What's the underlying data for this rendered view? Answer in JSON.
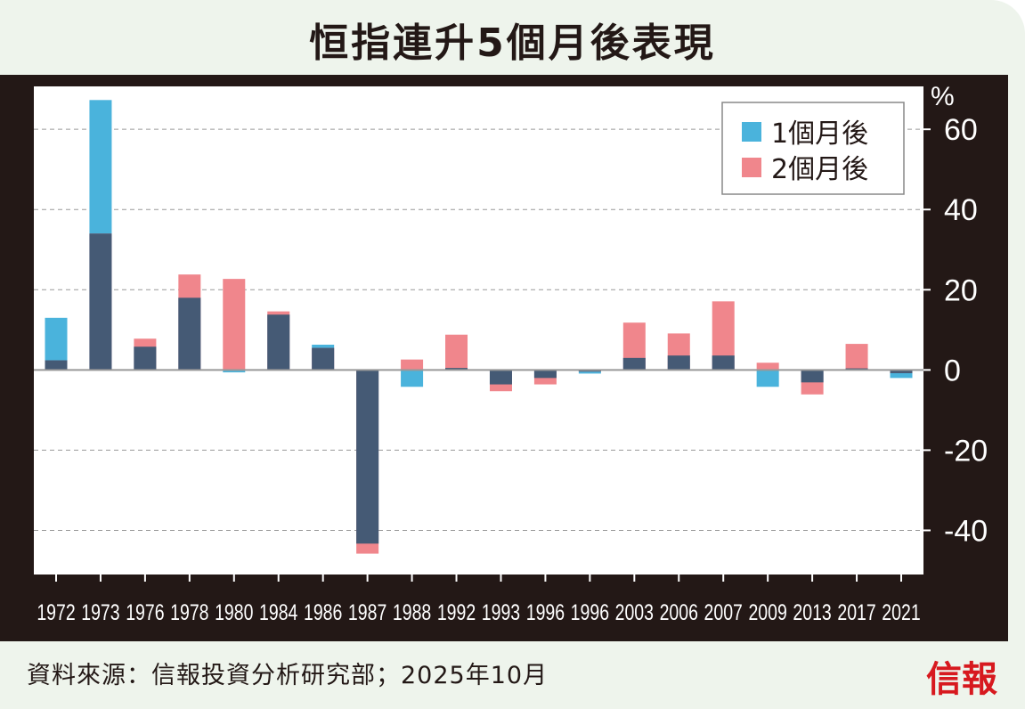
{
  "chart_data": {
    "type": "bar",
    "title": "恒指連升5個月後表現",
    "ylabel": "%",
    "ylim": [
      -51,
      70.7
    ],
    "yticks": [
      -40,
      -20,
      0,
      20,
      40,
      60
    ],
    "ytick_labels": [
      "-40",
      "-20",
      "0",
      "20",
      "40",
      "60"
    ],
    "grid": true,
    "legend_position": "top-right",
    "categories": [
      "1972",
      "1973",
      "1976",
      "1978",
      "1980",
      "1984",
      "1986",
      "1987",
      "1988",
      "1992",
      "1993",
      "1996",
      "1996",
      "2003",
      "2006",
      "2007",
      "2009",
      "2013",
      "2017",
      "2021"
    ],
    "series": [
      {
        "name": "1個月後",
        "color": "#4ab3dc",
        "values": [
          13.0,
          67.3,
          5.8,
          18.0,
          -0.6,
          13.8,
          6.3,
          -43.3,
          -4.2,
          0.5,
          -3.6,
          -2.0,
          -0.9,
          3.0,
          3.6,
          3.6,
          -4.2,
          -3.1,
          0.4,
          -2.0
        ]
      },
      {
        "name": "2個月後",
        "color": "#f0868c",
        "values": [
          2.4,
          34.0,
          7.8,
          23.8,
          22.7,
          14.6,
          5.5,
          -45.8,
          2.6,
          8.8,
          -5.3,
          -3.6,
          -0.4,
          11.8,
          9.1,
          17.1,
          1.8,
          -6.1,
          6.5,
          -0.8
        ]
      }
    ],
    "overlap_color": "#455a75"
  },
  "footer": {
    "source": "資料來源：信報投資分析研究部；2025年10月",
    "logo": "信報"
  }
}
